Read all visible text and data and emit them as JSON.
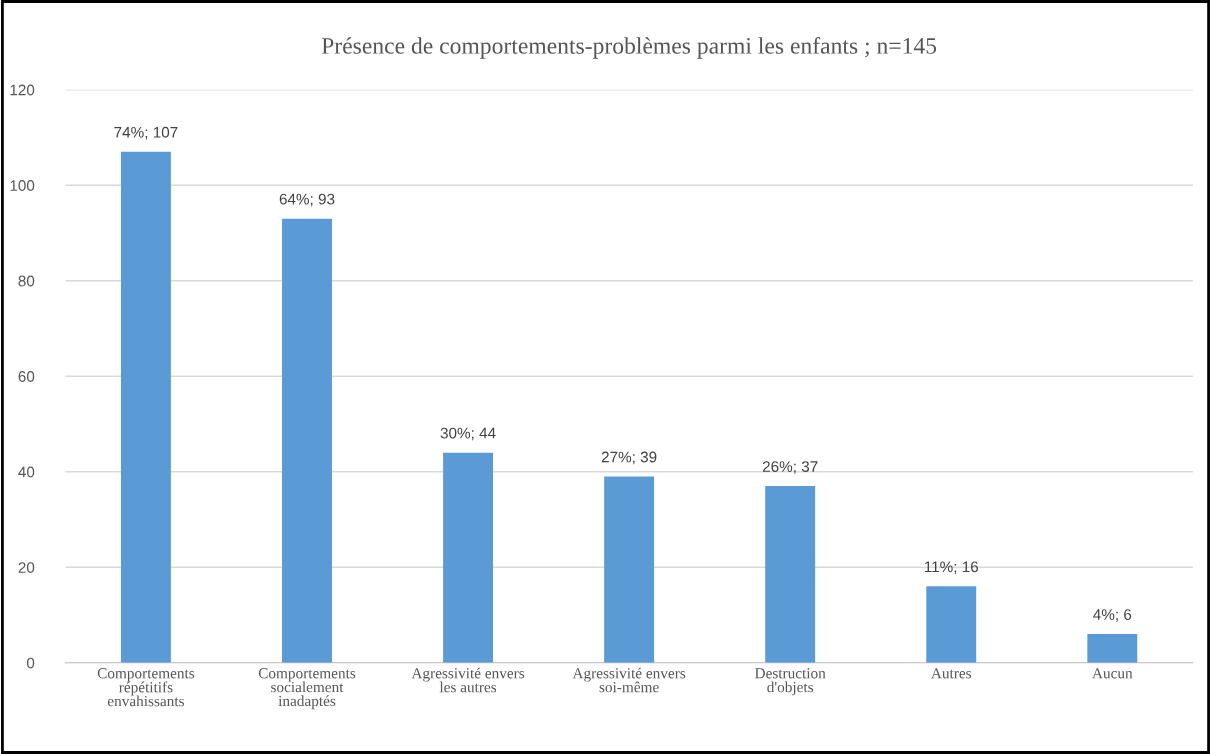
{
  "chart_data": {
    "type": "bar",
    "title": "Présence de comportements-problèmes parmi les enfants ; n=145",
    "categories": [
      "Comportements\nrépétitifs\nenvahissants",
      "Comportements\nsocialement\ninadaptés",
      "Agressivité envers\nles autres",
      "Agressivité envers\nsoi-même",
      "Destruction\nd'objets",
      "Autres",
      "Aucun"
    ],
    "values": [
      107,
      93,
      44,
      39,
      37,
      16,
      6
    ],
    "value_labels": [
      "74%; 107",
      "64%; 93",
      "30%; 44",
      "27%; 39",
      "26%; 37",
      "11%; 16",
      "4%; 6"
    ],
    "color": "#5b9bd5",
    "ylim": [
      0,
      120
    ],
    "yticks": [
      0,
      20,
      40,
      60,
      80,
      100,
      120
    ],
    "grid": "y"
  }
}
